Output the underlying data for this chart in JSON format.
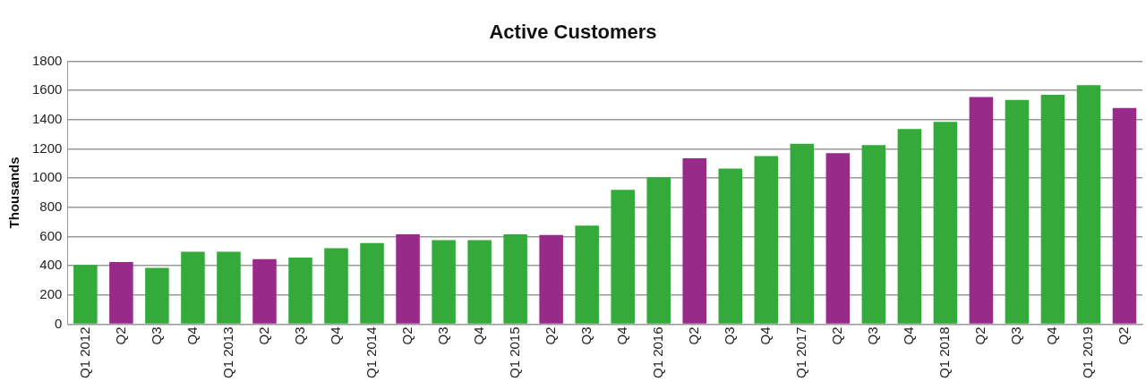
{
  "chart_data": {
    "type": "bar",
    "title": "Active Customers",
    "ylabel": "Thousands",
    "categories": [
      "Q1 2012",
      "Q2",
      "Q3",
      "Q4",
      "Q1 2013",
      "Q2",
      "Q3",
      "Q4",
      "Q1 2014",
      "Q2",
      "Q3",
      "Q4",
      "Q1 2015",
      "Q2",
      "Q3",
      "Q4",
      "Q1 2016",
      "Q2",
      "Q3",
      "Q4",
      "Q1 2017",
      "Q2",
      "Q3",
      "Q4",
      "Q1 2018",
      "Q2",
      "Q3",
      "Q4",
      "Q1 2019",
      "Q2"
    ],
    "values": [
      405,
      425,
      385,
      495,
      495,
      445,
      455,
      520,
      555,
      615,
      575,
      575,
      615,
      610,
      675,
      920,
      1005,
      1135,
      1065,
      1150,
      1235,
      1170,
      1225,
      1335,
      1385,
      1555,
      1535,
      1570,
      1635,
      1480
    ],
    "colors": [
      "#33aa3a",
      "#982a8a",
      "#33aa3a",
      "#33aa3a",
      "#33aa3a",
      "#982a8a",
      "#33aa3a",
      "#33aa3a",
      "#33aa3a",
      "#982a8a",
      "#33aa3a",
      "#33aa3a",
      "#33aa3a",
      "#982a8a",
      "#33aa3a",
      "#33aa3a",
      "#33aa3a",
      "#982a8a",
      "#33aa3a",
      "#33aa3a",
      "#33aa3a",
      "#982a8a",
      "#33aa3a",
      "#33aa3a",
      "#33aa3a",
      "#982a8a",
      "#33aa3a",
      "#33aa3a",
      "#33aa3a",
      "#982a8a"
    ],
    "ylim": [
      0,
      1800
    ],
    "yticks": [
      0,
      200,
      400,
      600,
      800,
      1000,
      1200,
      1400,
      1600,
      1800
    ],
    "grid": "y",
    "legend": false
  }
}
